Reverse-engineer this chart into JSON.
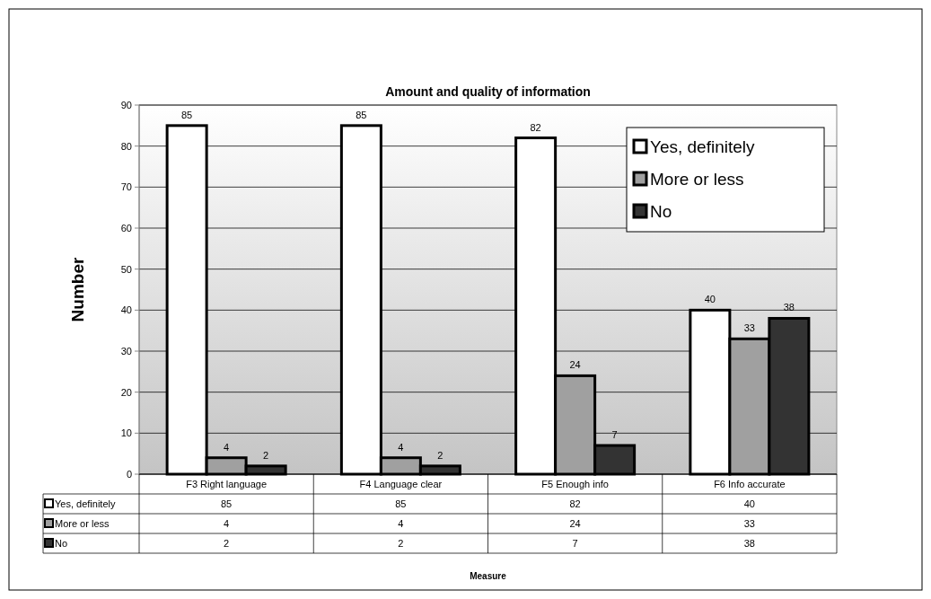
{
  "chart_data": [
    {
      "type": "bar",
      "title": "Amount and quality of information",
      "ylabel": "Number",
      "categories": [
        "F3 Right language",
        "F4 Language clear",
        "F5 Enough info",
        "F6 Info accurate"
      ],
      "series": [
        {
          "name": "Yes, definitely",
          "color": "#ffffff",
          "values": [
            85,
            85,
            82,
            40
          ]
        },
        {
          "name": "More or less",
          "color": "#a0a0a0",
          "values": [
            4,
            4,
            24,
            33
          ]
        },
        {
          "name": "No",
          "color": "#333333",
          "values": [
            2,
            2,
            7,
            38
          ]
        }
      ],
      "ylim": [
        0,
        90
      ],
      "yticks": [
        0,
        10,
        20,
        30,
        40,
        50,
        60,
        70,
        80,
        90
      ],
      "grid": "y",
      "legend": "top right",
      "data_labels": true
    },
    {
      "type": "other",
      "xlabel": "Measure",
      "categories": [
        "Yes, definitely",
        "More or less",
        "No"
      ],
      "colors": [
        "#ffffff",
        "#a0a0a0",
        "#333333"
      ],
      "annotations": [
        "85",
        "85",
        "82",
        "40",
        "4",
        "4",
        "24",
        "33",
        "2",
        "2",
        "7",
        "38"
      ]
    }
  ]
}
